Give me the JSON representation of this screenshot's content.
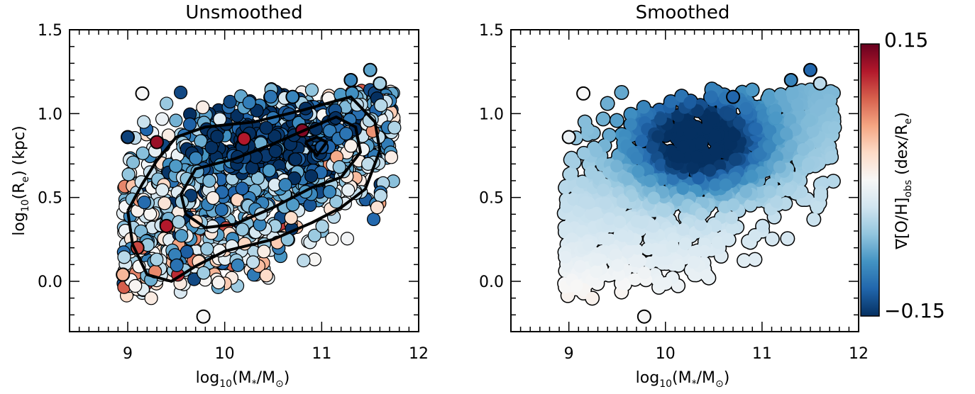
{
  "figure": {
    "ylabel_main": "log",
    "ylabel_sub": "10",
    "ylabel_mid": "(R",
    "ylabel_sub2": "e",
    "ylabel_tail": ")  (kpc)",
    "xlabel_main": "log",
    "xlabel_sub": "10",
    "xlabel_mid": "(M",
    "xlabel_sub2": "*",
    "xlabel_slash": "/M",
    "xlabel_sub3": "⊙",
    "xlabel_tail": ")"
  },
  "colorbar": {
    "label_main": "∇[O/H]",
    "label_sub": "obs",
    "label_mid": " (dex/R",
    "label_sub2": "e",
    "label_tail": ")",
    "max_label": "0.15",
    "min_label": "−0.15",
    "vmin": -0.15,
    "vmax": 0.15,
    "colors": [
      "#67001f",
      "#b2182b",
      "#d6604d",
      "#f4a582",
      "#fddbc7",
      "#f7f7f7",
      "#d1e5f0",
      "#92c5de",
      "#4393c3",
      "#2166ac",
      "#053061"
    ]
  },
  "chart_data": [
    {
      "type": "scatter",
      "title": "Unsmoothed",
      "xlim": [
        8.4,
        12.0
      ],
      "ylim": [
        -0.3,
        1.5
      ],
      "xticks": [
        "9",
        "10",
        "11",
        "12"
      ],
      "yticks": [
        "0.0",
        "0.5",
        "1.0",
        "1.5"
      ],
      "colorscale": "gradient",
      "points": [
        {
          "x": 9.15,
          "y": 1.12,
          "c": 0.0
        },
        {
          "x": 9.0,
          "y": 0.86,
          "c": -0.14
        },
        {
          "x": 9.78,
          "y": -0.21,
          "c": 0.0
        },
        {
          "x": 11.6,
          "y": 1.18,
          "c": -0.05
        },
        {
          "x": 11.5,
          "y": 1.26,
          "c": -0.08
        },
        {
          "x": 11.3,
          "y": 1.2,
          "c": -0.1
        },
        {
          "x": 10.7,
          "y": 1.1,
          "c": -0.1
        },
        {
          "x": 11.0,
          "y": 0.8,
          "c": -0.13
        },
        {
          "x": 9.3,
          "y": 0.83,
          "c": 0.13
        },
        {
          "x": 9.4,
          "y": 0.33,
          "c": 0.12
        },
        {
          "x": 9.1,
          "y": 0.2,
          "c": 0.1
        },
        {
          "x": 8.95,
          "y": 0.04,
          "c": 0.05
        },
        {
          "x": 10.2,
          "y": 0.85,
          "c": 0.12
        },
        {
          "x": 10.8,
          "y": 0.9,
          "c": 0.14
        }
      ],
      "contours": [
        {
          "level": "outer",
          "path": [
            [
              9.0,
              0.42
            ],
            [
              9.15,
              0.58
            ],
            [
              9.3,
              0.72
            ],
            [
              9.5,
              0.86
            ],
            [
              9.8,
              0.92
            ],
            [
              10.3,
              0.95
            ],
            [
              10.8,
              1.02
            ],
            [
              11.3,
              1.1
            ],
            [
              11.55,
              0.95
            ],
            [
              11.6,
              0.78
            ],
            [
              11.45,
              0.55
            ],
            [
              11.2,
              0.44
            ],
            [
              10.9,
              0.35
            ],
            [
              10.5,
              0.25
            ],
            [
              10.0,
              0.18
            ],
            [
              9.7,
              0.09
            ],
            [
              9.45,
              0.0
            ],
            [
              9.2,
              0.04
            ],
            [
              9.05,
              0.22
            ],
            [
              9.0,
              0.42
            ]
          ]
        },
        {
          "level": "inner",
          "path": [
            [
              9.55,
              0.52
            ],
            [
              9.7,
              0.67
            ],
            [
              10.1,
              0.73
            ],
            [
              10.5,
              0.82
            ],
            [
              10.9,
              0.92
            ],
            [
              11.15,
              0.98
            ],
            [
              11.35,
              0.92
            ],
            [
              11.4,
              0.77
            ],
            [
              11.2,
              0.62
            ],
            [
              10.9,
              0.56
            ],
            [
              10.5,
              0.44
            ],
            [
              10.1,
              0.34
            ],
            [
              9.8,
              0.32
            ],
            [
              9.6,
              0.4
            ],
            [
              9.55,
              0.52
            ]
          ]
        },
        {
          "level": "peak",
          "path": [
            [
              10.83,
              0.83
            ],
            [
              10.95,
              0.86
            ],
            [
              11.05,
              0.83
            ],
            [
              10.95,
              0.75
            ],
            [
              10.83,
              0.83
            ]
          ]
        }
      ]
    },
    {
      "type": "scatter",
      "title": "Smoothed",
      "xlim": [
        8.4,
        12.0
      ],
      "ylim": [
        -0.3,
        1.5
      ],
      "xticks": [
        "9",
        "10",
        "11",
        "12"
      ],
      "yticks": [
        "0.0",
        "0.5",
        "1.0",
        "1.5"
      ],
      "colorscale": "gradient",
      "points": [
        {
          "x": 9.15,
          "y": 1.12,
          "c": 0.0
        },
        {
          "x": 9.0,
          "y": 0.86,
          "c": -0.01
        },
        {
          "x": 9.78,
          "y": -0.21,
          "c": 0.0
        },
        {
          "x": 11.6,
          "y": 1.18,
          "c": -0.04
        },
        {
          "x": 11.5,
          "y": 1.26,
          "c": -0.12
        },
        {
          "x": 11.3,
          "y": 1.2,
          "c": -0.1
        },
        {
          "x": 10.7,
          "y": 1.1,
          "c": -0.12
        }
      ]
    }
  ]
}
